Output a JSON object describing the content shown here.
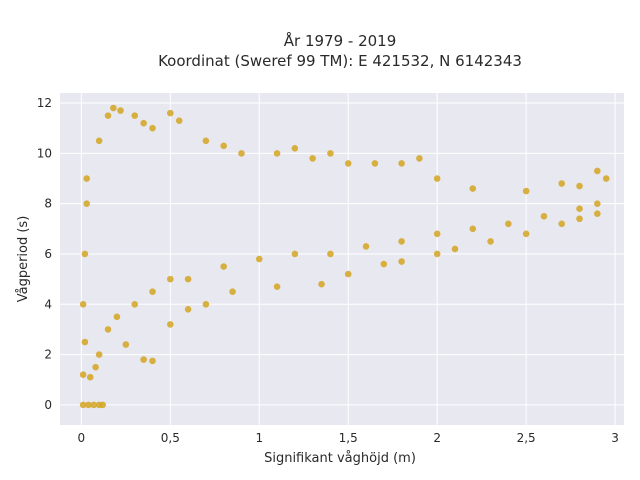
{
  "chart_data": {
    "type": "scatter",
    "title_line1": "År 1979 - 2019",
    "title_line2": "Koordinat (Sweref 99 TM): E 421532, N 6142343",
    "xlabel": "Signifikant våghöjd (m)",
    "ylabel": "Vågperiod (s)",
    "xlim": [
      -0.12,
      3.05
    ],
    "ylim": [
      -0.8,
      12.4
    ],
    "xticks": [
      0,
      0.5,
      1,
      1.5,
      2,
      2.5,
      3
    ],
    "xtick_labels": [
      "0",
      "0,5",
      "1",
      "1,5",
      "2",
      "2,5",
      "3"
    ],
    "yticks": [
      0,
      2,
      4,
      6,
      8,
      10,
      12
    ],
    "ytick_labels": [
      "0",
      "2",
      "4",
      "6",
      "8",
      "10",
      "12"
    ],
    "grid": true,
    "legend": "none",
    "colors": {
      "marker": "#d4a422",
      "plot_bg": "#e8e8f0",
      "grid": "#ffffff"
    },
    "series": [
      {
        "points": [
          [
            0.01,
            0.0
          ],
          [
            0.04,
            0.0
          ],
          [
            0.07,
            0.0
          ],
          [
            0.1,
            0.0
          ],
          [
            0.12,
            0.0
          ],
          [
            0.01,
            1.2
          ],
          [
            0.02,
            2.5
          ],
          [
            0.01,
            4.0
          ],
          [
            0.02,
            6.0
          ],
          [
            0.03,
            8.0
          ],
          [
            0.03,
            9.0
          ],
          [
            0.05,
            1.1
          ],
          [
            0.08,
            1.5
          ],
          [
            0.1,
            2.0
          ],
          [
            0.15,
            3.0
          ],
          [
            0.2,
            3.5
          ],
          [
            0.3,
            4.0
          ],
          [
            0.4,
            4.5
          ],
          [
            0.5,
            5.0
          ],
          [
            0.6,
            5.0
          ],
          [
            0.8,
            5.5
          ],
          [
            1.0,
            5.8
          ],
          [
            1.2,
            6.0
          ],
          [
            1.4,
            6.0
          ],
          [
            1.6,
            6.3
          ],
          [
            1.8,
            6.5
          ],
          [
            2.0,
            6.8
          ],
          [
            2.2,
            7.0
          ],
          [
            2.4,
            7.2
          ],
          [
            2.6,
            7.5
          ],
          [
            2.8,
            7.8
          ],
          [
            2.9,
            8.0
          ],
          [
            2.95,
            9.0
          ],
          [
            2.9,
            9.3
          ],
          [
            0.1,
            10.5
          ],
          [
            0.15,
            11.5
          ],
          [
            0.18,
            11.8
          ],
          [
            0.22,
            11.7
          ],
          [
            0.3,
            11.5
          ],
          [
            0.35,
            11.2
          ],
          [
            0.4,
            11.0
          ],
          [
            0.5,
            11.6
          ],
          [
            0.55,
            11.3
          ],
          [
            0.7,
            10.5
          ],
          [
            0.8,
            10.3
          ],
          [
            0.9,
            10.0
          ],
          [
            1.1,
            10.0
          ],
          [
            1.2,
            10.2
          ],
          [
            1.3,
            9.8
          ],
          [
            1.4,
            10.0
          ],
          [
            1.5,
            9.6
          ],
          [
            1.65,
            9.6
          ],
          [
            1.8,
            9.6
          ],
          [
            1.9,
            9.8
          ],
          [
            2.0,
            9.0
          ],
          [
            2.2,
            8.6
          ],
          [
            2.5,
            8.5
          ],
          [
            2.7,
            8.8
          ],
          [
            2.8,
            8.7
          ],
          [
            0.35,
            1.8
          ],
          [
            0.4,
            1.75
          ],
          [
            0.25,
            2.4
          ],
          [
            0.5,
            3.2
          ],
          [
            0.6,
            3.8
          ],
          [
            0.7,
            4.0
          ],
          [
            0.85,
            4.5
          ],
          [
            1.1,
            4.7
          ],
          [
            1.35,
            4.8
          ],
          [
            1.5,
            5.2
          ],
          [
            1.7,
            5.6
          ],
          [
            1.8,
            5.7
          ],
          [
            2.0,
            6.0
          ],
          [
            2.1,
            6.2
          ],
          [
            2.3,
            6.5
          ],
          [
            2.5,
            6.8
          ],
          [
            2.7,
            7.2
          ],
          [
            2.8,
            7.4
          ],
          [
            2.9,
            7.6
          ]
        ]
      }
    ]
  }
}
